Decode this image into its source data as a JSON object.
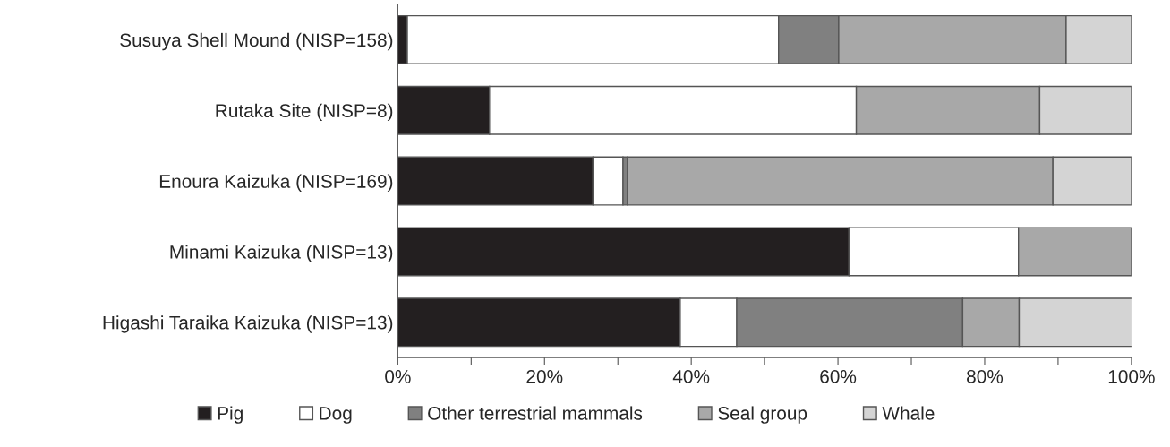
{
  "chart_data": {
    "type": "bar",
    "orientation": "horizontal",
    "stacked": true,
    "categories": [
      "Susuya Shell Mound (NISP=158)",
      "Rutaka Site (NISP=8)",
      "Enoura Kaizuka (NISP=169)",
      "Minami Kaizuka (NISP=13)",
      "Higashi Taraika Kaizuka (NISP=13)"
    ],
    "series": [
      {
        "name": "Pig",
        "color": "#231f20",
        "values": [
          1.3,
          12.5,
          26.6,
          61.5,
          38.5
        ]
      },
      {
        "name": "Dog",
        "color": "#ffffff",
        "values": [
          50.6,
          50.0,
          4.1,
          23.1,
          7.7
        ]
      },
      {
        "name": "Other terrestrial mammals",
        "color": "#808080",
        "values": [
          8.2,
          null,
          0.6,
          null,
          30.8
        ]
      },
      {
        "name": "Seal group",
        "color": "#a8a8a8",
        "values": [
          31.0,
          25.0,
          58.0,
          15.4,
          7.7
        ]
      },
      {
        "name": "Whale",
        "color": "#d4d4d4",
        "values": [
          8.9,
          12.5,
          10.7,
          null,
          15.4
        ]
      }
    ],
    "xlim": [
      0,
      100
    ],
    "xticks": [
      {
        "value": 0,
        "label": "0%"
      },
      {
        "value": 10,
        "label": null
      },
      {
        "value": 20,
        "label": "20%"
      },
      {
        "value": 30,
        "label": null
      },
      {
        "value": 40,
        "label": "40%"
      },
      {
        "value": 50,
        "label": null
      },
      {
        "value": 60,
        "label": "60%"
      },
      {
        "value": 70,
        "label": null
      },
      {
        "value": 80,
        "label": "80%"
      },
      {
        "value": 90,
        "label": null
      },
      {
        "value": 100,
        "label": "100%"
      }
    ],
    "grid": false,
    "legend": "bottom"
  }
}
